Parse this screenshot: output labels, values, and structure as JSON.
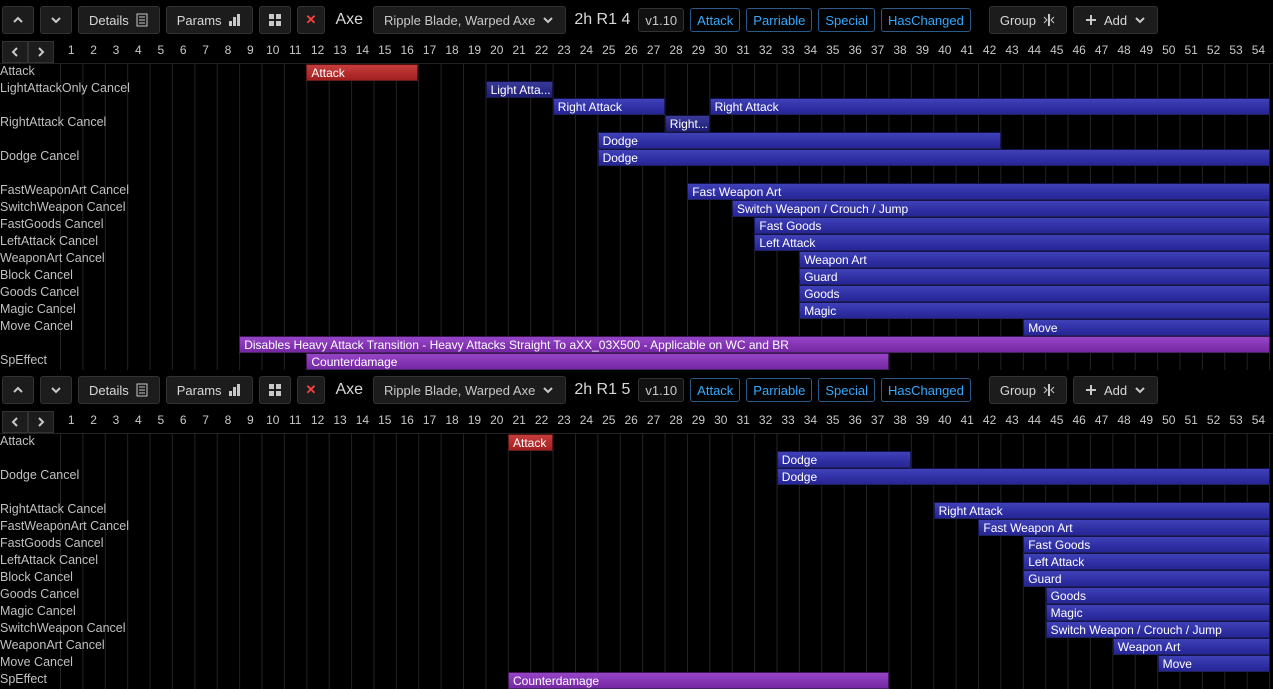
{
  "layout": {
    "trackStart": 60,
    "cellWidth": 22.4,
    "frames": 54,
    "gridColor": "#232323",
    "barGradient": "linear-gradient(to bottom, rgba(255,255,255,0.10), rgba(0,0,0,0.15))"
  },
  "colors": {
    "red": "#c02626",
    "blue": "#2b2bb0",
    "dblue": "#23238c",
    "purple": "#8a2fc0",
    "lpurple": "#8a2fc0"
  },
  "toolbar": {
    "details": "Details",
    "params": "Params",
    "axe": "Axe",
    "weapon": "Ripple Blade, Warped Axe",
    "badgeV": "v1.10",
    "badgeAttack": "Attack",
    "badgeParriable": "Parriable",
    "badgeSpecial": "Special",
    "badgeHasChanged": "HasChanged",
    "group": "Group",
    "add": "Add"
  },
  "panels": [
    {
      "slot": "2h R1 4",
      "rows": [
        {
          "label": "Attack",
          "bars": [
            {
              "start": 12,
              "end": 17,
              "text": "Attack",
              "color": "red"
            }
          ]
        },
        {
          "label": "LightAttackOnly Cancel",
          "bars": [
            {
              "start": 20,
              "end": 23,
              "text": "Light Atta...",
              "color": "dblue"
            }
          ]
        },
        {
          "label": "",
          "bars": [
            {
              "start": 23,
              "end": 28,
              "text": "Right Attack",
              "color": "blue"
            },
            {
              "start": 30,
              "end": 55,
              "text": "Right Attack",
              "color": "blue"
            }
          ]
        },
        {
          "label": "RightAttack Cancel",
          "bars": [
            {
              "start": 28,
              "end": 30,
              "text": "Right...",
              "color": "dblue"
            }
          ]
        },
        {
          "label": "",
          "bars": [
            {
              "start": 25,
              "end": 43,
              "text": "Dodge",
              "color": "blue"
            }
          ]
        },
        {
          "label": "Dodge Cancel",
          "bars": [
            {
              "start": 25,
              "end": 55,
              "text": "Dodge",
              "color": "blue"
            }
          ]
        },
        {
          "label": "",
          "bars": []
        },
        {
          "label": "FastWeaponArt Cancel",
          "bars": [
            {
              "start": 29,
              "end": 55,
              "text": "Fast Weapon Art",
              "color": "blue"
            }
          ]
        },
        {
          "label": "SwitchWeapon Cancel",
          "bars": [
            {
              "start": 31,
              "end": 55,
              "text": "Switch Weapon / Crouch / Jump",
              "color": "blue"
            }
          ]
        },
        {
          "label": "FastGoods Cancel",
          "bars": [
            {
              "start": 32,
              "end": 55,
              "text": "Fast Goods",
              "color": "blue"
            }
          ]
        },
        {
          "label": "LeftAttack Cancel",
          "bars": [
            {
              "start": 32,
              "end": 55,
              "text": "Left Attack",
              "color": "blue"
            }
          ]
        },
        {
          "label": "WeaponArt Cancel",
          "bars": [
            {
              "start": 34,
              "end": 55,
              "text": "Weapon Art",
              "color": "blue"
            }
          ]
        },
        {
          "label": "Block Cancel",
          "bars": [
            {
              "start": 34,
              "end": 55,
              "text": "Guard",
              "color": "blue"
            }
          ]
        },
        {
          "label": "Goods Cancel",
          "bars": [
            {
              "start": 34,
              "end": 55,
              "text": "Goods",
              "color": "blue"
            }
          ]
        },
        {
          "label": "Magic Cancel",
          "bars": [
            {
              "start": 34,
              "end": 55,
              "text": "Magic",
              "color": "blue"
            }
          ]
        },
        {
          "label": "Move Cancel",
          "bars": [
            {
              "start": 44,
              "end": 55,
              "text": "Move",
              "color": "blue"
            }
          ]
        },
        {
          "label": "",
          "bars": [
            {
              "start": 9,
              "end": 55,
              "text": "Disables Heavy Attack Transition - Heavy Attacks Straight To aXX_03X500 - Applicable on WC and BR",
              "color": "purple"
            }
          ]
        },
        {
          "label": "SpEffect",
          "bars": [
            {
              "start": 12,
              "end": 38,
              "text": "Counterdamage",
              "color": "lpurple"
            }
          ]
        }
      ]
    },
    {
      "slot": "2h R1 5",
      "rows": [
        {
          "label": "Attack",
          "bars": [
            {
              "start": 21,
              "end": 23,
              "text": "Attack",
              "color": "red"
            }
          ]
        },
        {
          "label": "",
          "bars": [
            {
              "start": 33,
              "end": 39,
              "text": "Dodge",
              "color": "blue"
            }
          ]
        },
        {
          "label": "Dodge Cancel",
          "bars": [
            {
              "start": 33,
              "end": 55,
              "text": "Dodge",
              "color": "blue"
            }
          ]
        },
        {
          "label": "",
          "bars": []
        },
        {
          "label": "RightAttack Cancel",
          "bars": [
            {
              "start": 40,
              "end": 55,
              "text": "Right Attack",
              "color": "blue"
            }
          ]
        },
        {
          "label": "FastWeaponArt Cancel",
          "bars": [
            {
              "start": 42,
              "end": 55,
              "text": "Fast Weapon Art",
              "color": "blue"
            }
          ]
        },
        {
          "label": "FastGoods Cancel",
          "bars": [
            {
              "start": 44,
              "end": 55,
              "text": "Fast Goods",
              "color": "blue"
            }
          ]
        },
        {
          "label": "LeftAttack Cancel",
          "bars": [
            {
              "start": 44,
              "end": 55,
              "text": "Left Attack",
              "color": "blue"
            }
          ]
        },
        {
          "label": "Block Cancel",
          "bars": [
            {
              "start": 44,
              "end": 55,
              "text": "Guard",
              "color": "blue"
            }
          ]
        },
        {
          "label": "Goods Cancel",
          "bars": [
            {
              "start": 45,
              "end": 55,
              "text": "Goods",
              "color": "blue"
            }
          ]
        },
        {
          "label": "Magic Cancel",
          "bars": [
            {
              "start": 45,
              "end": 55,
              "text": "Magic",
              "color": "blue"
            }
          ]
        },
        {
          "label": "SwitchWeapon Cancel",
          "bars": [
            {
              "start": 45,
              "end": 55,
              "text": "Switch Weapon / Crouch / Jump",
              "color": "blue"
            }
          ]
        },
        {
          "label": "WeaponArt Cancel",
          "bars": [
            {
              "start": 48,
              "end": 55,
              "text": "Weapon Art",
              "color": "blue"
            }
          ]
        },
        {
          "label": "Move Cancel",
          "bars": [
            {
              "start": 50,
              "end": 55,
              "text": "Move",
              "color": "blue"
            }
          ]
        },
        {
          "label": "SpEffect",
          "bars": [
            {
              "start": 21,
              "end": 38,
              "text": "Counterdamage",
              "color": "lpurple"
            }
          ]
        }
      ]
    }
  ]
}
